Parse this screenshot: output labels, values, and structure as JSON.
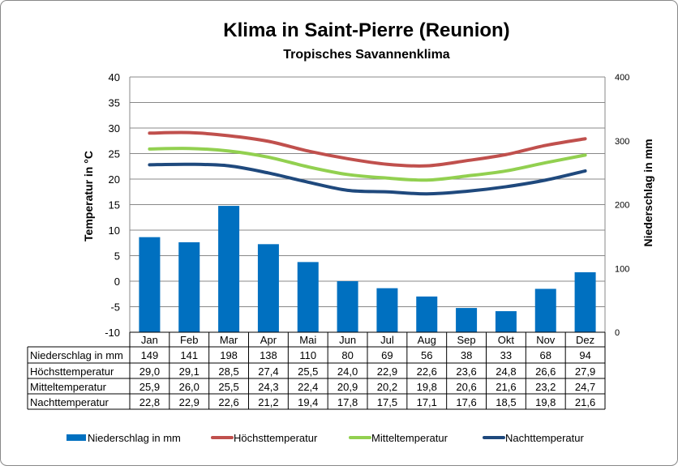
{
  "chart_data": {
    "type": "bar+line",
    "title": "Klima in Saint-Pierre (Reunion)",
    "subtitle": "Tropisches Savannenklima",
    "ylabel_left": "Temperatur in °C",
    "ylabel_right": "Niederschlag in mm",
    "ylim_left": [
      -10,
      40
    ],
    "yticks_left": [
      -10,
      -5,
      0,
      5,
      10,
      15,
      20,
      25,
      30,
      35,
      40
    ],
    "ylim_right": [
      0,
      400
    ],
    "yticks_right": [
      0,
      100,
      200,
      300,
      400
    ],
    "grid": true,
    "legend_position": "bottom",
    "categories": [
      "Jan",
      "Feb",
      "Mar",
      "Apr",
      "Mai",
      "Jun",
      "Jul",
      "Aug",
      "Sep",
      "Okt",
      "Nov",
      "Dez"
    ],
    "series": [
      {
        "name": "Niederschlag in mm",
        "kind": "bar",
        "axis": "right",
        "color": "#0070C0",
        "values": [
          149,
          141,
          198,
          138,
          110,
          80,
          69,
          56,
          38,
          33,
          68,
          94
        ],
        "labels": [
          "149",
          "141",
          "198",
          "138",
          "110",
          "80",
          "69",
          "56",
          "38",
          "33",
          "68",
          "94"
        ]
      },
      {
        "name": "Höchsttemperatur",
        "kind": "line",
        "axis": "left",
        "color": "#C0504D",
        "values": [
          29.0,
          29.1,
          28.5,
          27.4,
          25.5,
          24.0,
          22.9,
          22.6,
          23.6,
          24.8,
          26.6,
          27.9
        ],
        "labels": [
          "29,0",
          "29,1",
          "28,5",
          "27,4",
          "25,5",
          "24,0",
          "22,9",
          "22,6",
          "23,6",
          "24,8",
          "26,6",
          "27,9"
        ]
      },
      {
        "name": "Mitteltemperatur",
        "kind": "line",
        "axis": "left",
        "color": "#92D050",
        "values": [
          25.9,
          26.0,
          25.5,
          24.3,
          22.4,
          20.9,
          20.2,
          19.8,
          20.6,
          21.6,
          23.2,
          24.7
        ],
        "labels": [
          "25,9",
          "26,0",
          "25,5",
          "24,3",
          "22,4",
          "20,9",
          "20,2",
          "19,8",
          "20,6",
          "21,6",
          "23,2",
          "24,7"
        ]
      },
      {
        "name": "Nachttemperatur",
        "kind": "line",
        "axis": "left",
        "color": "#1F497D",
        "values": [
          22.8,
          22.9,
          22.6,
          21.2,
          19.4,
          17.8,
          17.5,
          17.1,
          17.6,
          18.5,
          19.8,
          21.6
        ],
        "labels": [
          "22,8",
          "22,9",
          "22,6",
          "21,2",
          "19,4",
          "17,8",
          "17,5",
          "17,1",
          "17,6",
          "18,5",
          "19,8",
          "21,6"
        ]
      }
    ]
  }
}
